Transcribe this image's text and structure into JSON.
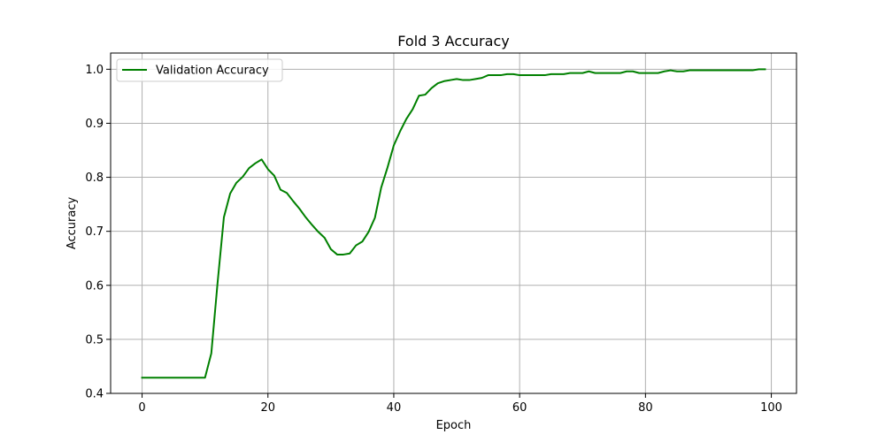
{
  "chart_data": {
    "type": "line",
    "title": "Fold 3 Accuracy",
    "xlabel": "Epoch",
    "ylabel": "Accuracy",
    "xlim": [
      -5,
      104
    ],
    "ylim": [
      0.4,
      1.03
    ],
    "xticks": [
      0,
      20,
      40,
      60,
      80,
      100
    ],
    "yticks": [
      0.4,
      0.5,
      0.6,
      0.7,
      0.8,
      0.9,
      1.0
    ],
    "xtick_labels": [
      "0",
      "20",
      "40",
      "60",
      "80",
      "100"
    ],
    "ytick_labels": [
      "0.4",
      "0.5",
      "0.6",
      "0.7",
      "0.8",
      "0.9",
      "1.0"
    ],
    "grid": true,
    "legend_position": "top-left",
    "series": [
      {
        "name": "Validation Accuracy",
        "color": "#008000",
        "x": [
          0,
          1,
          2,
          3,
          4,
          5,
          6,
          7,
          8,
          9,
          10,
          11,
          12,
          13,
          14,
          15,
          16,
          17,
          18,
          19,
          20,
          21,
          22,
          23,
          24,
          25,
          26,
          27,
          28,
          29,
          30,
          31,
          32,
          33,
          34,
          35,
          36,
          37,
          38,
          39,
          40,
          41,
          42,
          43,
          44,
          45,
          46,
          47,
          48,
          49,
          50,
          51,
          52,
          53,
          54,
          55,
          56,
          57,
          58,
          59,
          60,
          61,
          62,
          63,
          64,
          65,
          66,
          67,
          68,
          69,
          70,
          71,
          72,
          73,
          74,
          75,
          76,
          77,
          78,
          79,
          80,
          81,
          82,
          83,
          84,
          85,
          86,
          87,
          88,
          89,
          90,
          91,
          92,
          93,
          94,
          95,
          96,
          97,
          98,
          99
        ],
        "y": [
          0.429,
          0.429,
          0.429,
          0.429,
          0.429,
          0.429,
          0.429,
          0.429,
          0.429,
          0.429,
          0.429,
          0.474,
          0.605,
          0.726,
          0.77,
          0.79,
          0.801,
          0.817,
          0.826,
          0.833,
          0.815,
          0.803,
          0.777,
          0.771,
          0.756,
          0.742,
          0.726,
          0.712,
          0.699,
          0.688,
          0.667,
          0.657,
          0.657,
          0.659,
          0.674,
          0.681,
          0.699,
          0.725,
          0.781,
          0.818,
          0.859,
          0.885,
          0.908,
          0.926,
          0.951,
          0.953,
          0.965,
          0.974,
          0.978,
          0.98,
          0.982,
          0.98,
          0.98,
          0.982,
          0.984,
          0.989,
          0.989,
          0.989,
          0.991,
          0.991,
          0.989,
          0.989,
          0.989,
          0.989,
          0.989,
          0.991,
          0.991,
          0.991,
          0.993,
          0.993,
          0.993,
          0.996,
          0.993,
          0.993,
          0.993,
          0.993,
          0.993,
          0.996,
          0.996,
          0.993,
          0.993,
          0.993,
          0.993,
          0.996,
          0.998,
          0.996,
          0.996,
          0.998,
          0.998,
          0.998,
          0.998,
          0.998,
          0.998,
          0.998,
          0.998,
          0.998,
          0.998,
          0.998,
          1.0,
          1.0
        ]
      }
    ]
  }
}
